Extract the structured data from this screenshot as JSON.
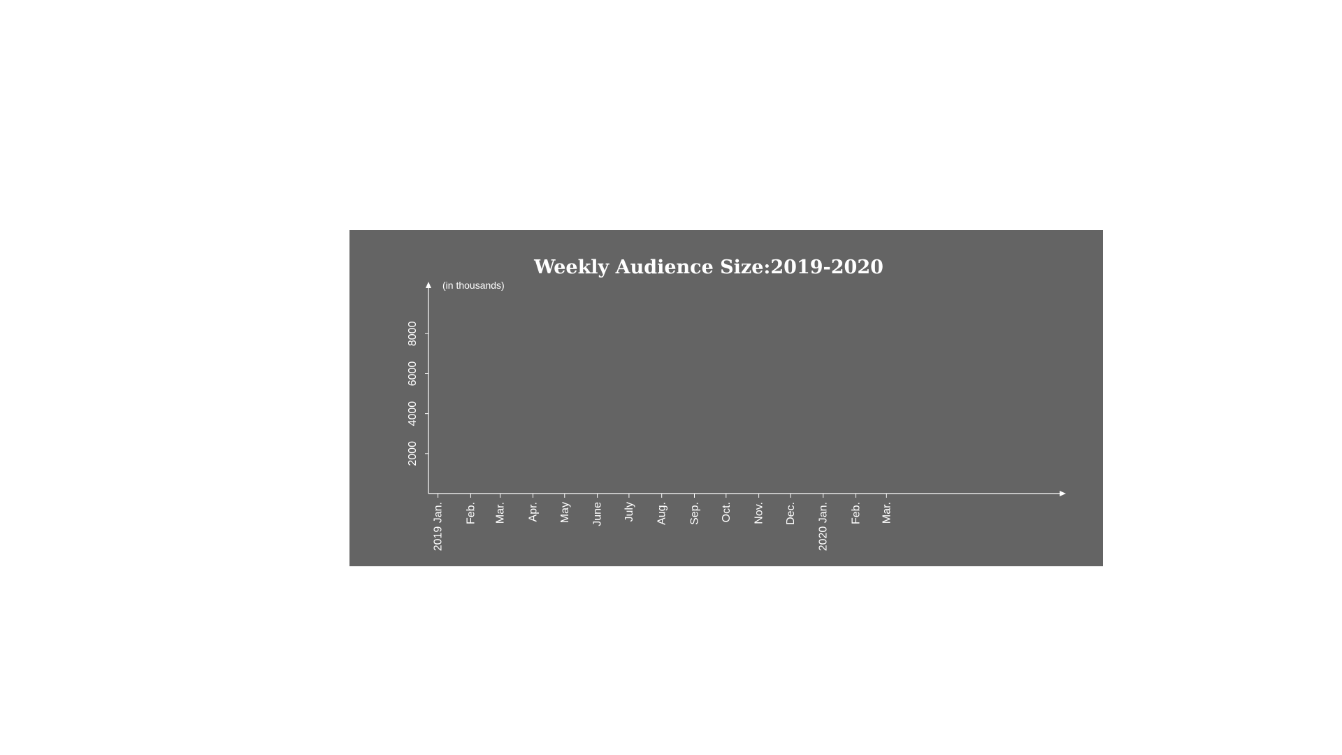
{
  "chart_data": {
    "type": "line",
    "title": "Weekly Audience Size:2019-2020",
    "ylabel": "(in thousands)",
    "xlabel": "",
    "x_tick_labels": [
      "2019 Jan.",
      "Feb.",
      "Mar.",
      "Apr.",
      "May",
      "June",
      "July",
      "Aug.",
      "Sep.",
      "Oct.",
      "Nov.",
      "Dec.",
      "2020 Jan.",
      "Feb.",
      "Mar."
    ],
    "x_tick_dates": [
      "2019-01-01",
      "2019-02-01",
      "2019-03-01",
      "2019-04-01",
      "2019-05-01",
      "2019-06-01",
      "2019-07-01",
      "2019-08-01",
      "2019-09-01",
      "2019-10-01",
      "2019-11-01",
      "2019-12-01",
      "2020-01-01",
      "2020-02-01",
      "2020-03-01"
    ],
    "xlim": [
      "2018-12-23",
      "2020-08-18"
    ],
    "y_ticks": [
      2000,
      4000,
      6000,
      8000
    ],
    "ylim": [
      0,
      10600
    ],
    "series": [],
    "grid": false,
    "colors": {
      "background": "#646464",
      "axis": "#ffffff",
      "text": "#ffffff"
    }
  }
}
